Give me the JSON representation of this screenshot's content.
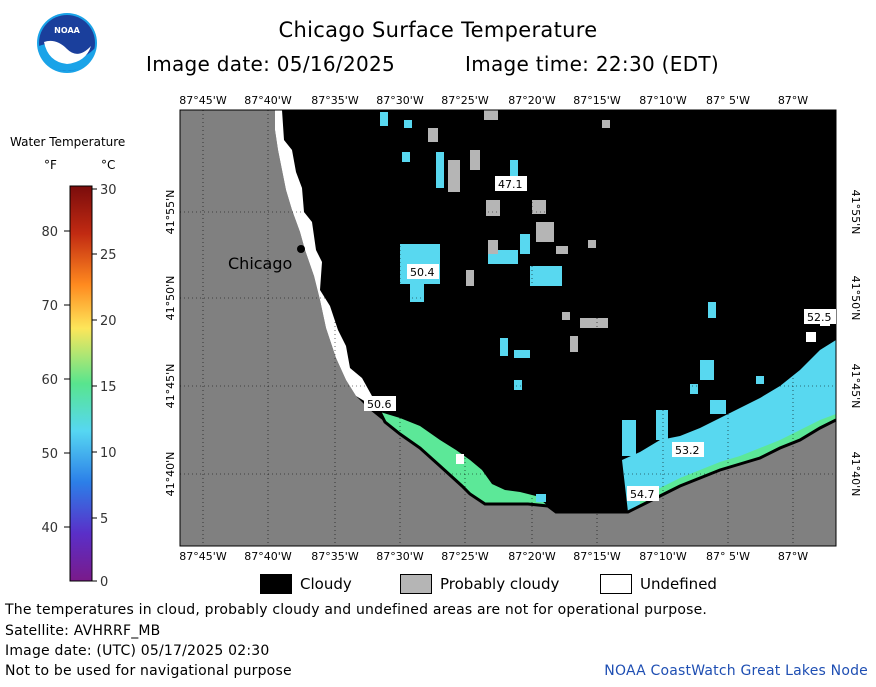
{
  "title": "Chicago Surface Temperature",
  "image_date_label": "Image date: 05/16/2025",
  "image_time_label": "Image time: 22:30 (EDT)",
  "logo": {
    "text": "NOAA",
    "icon": "noaa-logo-icon"
  },
  "legend": {
    "title": "Water Temperature",
    "unit_f": "°F",
    "unit_c": "°C",
    "f_ticks": [
      "80",
      "70",
      "60",
      "50",
      "40"
    ],
    "c_ticks": [
      "30",
      "25",
      "20",
      "15",
      "10",
      "5",
      "0"
    ],
    "colors": [
      "#7a0c0c",
      "#e6401a",
      "#ff9a1f",
      "#fde65a",
      "#58e58e",
      "#56d7f2",
      "#2c7fe8",
      "#5a2fc8",
      "#7a1a8a"
    ]
  },
  "map": {
    "lon_labels": [
      "87°45'W",
      "87°40'W",
      "87°35'W",
      "87°30'W",
      "87°25'W",
      "87°20'W",
      "87°15'W",
      "87°10'W",
      "87° 5'W",
      "87°W"
    ],
    "lat_labels": [
      "41°55'N",
      "41°50'N",
      "41°45'N",
      "41°40'N"
    ],
    "city_label": "Chicago",
    "temp_labels": [
      {
        "value": "47.1"
      },
      {
        "value": "50.4"
      },
      {
        "value": "52.5"
      },
      {
        "value": "50.6"
      },
      {
        "value": "53.2"
      },
      {
        "value": "54.7"
      }
    ],
    "colors": {
      "land": "#808080",
      "cloudy": "#000000",
      "probably_cloudy": "#b5b5b5",
      "undefined": "#ffffff"
    }
  },
  "key": {
    "cloudy": "Cloudy",
    "probably_cloudy": "Probably cloudy",
    "undefined": "Undefined"
  },
  "notes": {
    "disclaimer": "The temperatures in cloud, probably cloudy and undefined areas are not for operational purpose.",
    "satellite": "Satellite: AVHRRF_MB",
    "utc_date": "Image date: (UTC) 05/17/2025  02:30",
    "navigation": "Not to be used for navigational purpose"
  },
  "credit": "NOAA CoastWatch Great Lakes Node"
}
